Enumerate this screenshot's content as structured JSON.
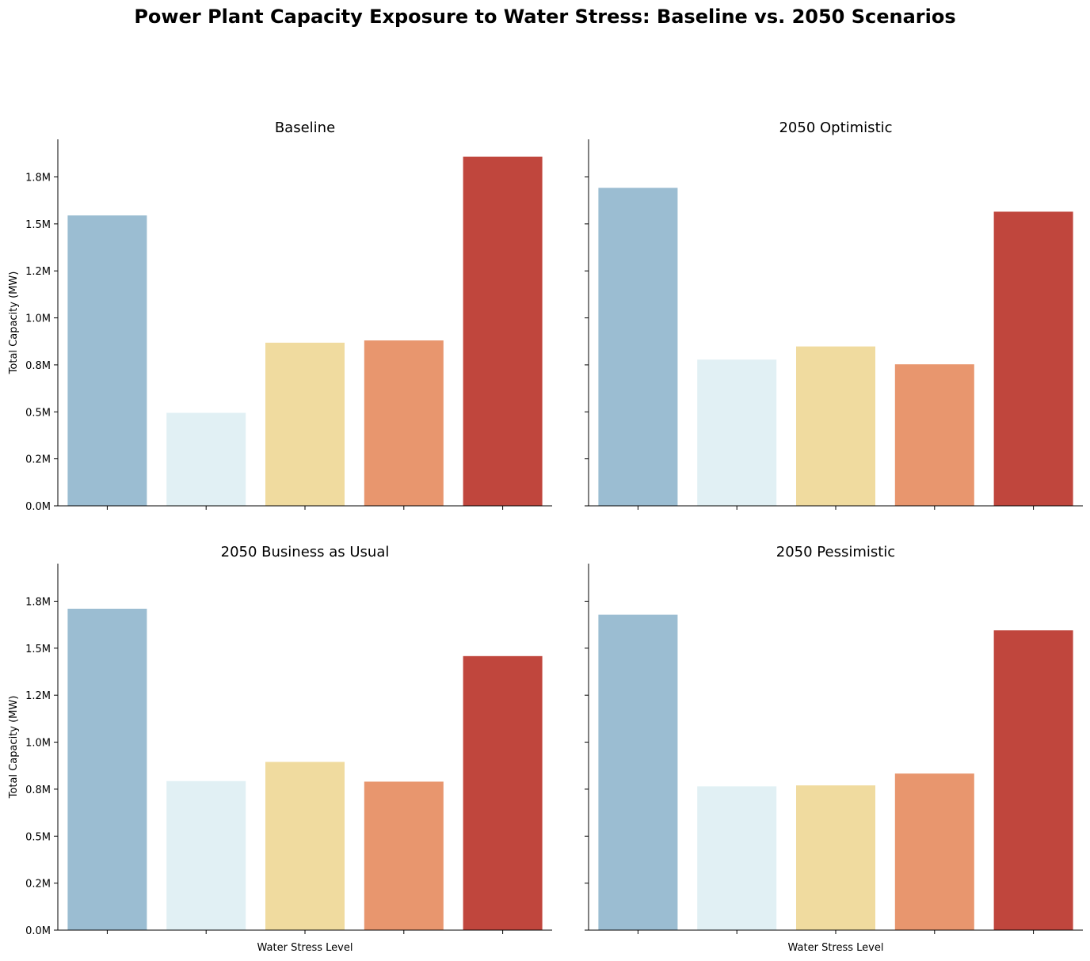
{
  "title": "Power Plant Capacity Exposure to Water Stress: Baseline vs. 2050 Scenarios",
  "chart_data": [
    {
      "type": "bar",
      "title": "Baseline",
      "xlabel": "",
      "ylabel": "Total Capacity (MW)",
      "values": [
        1545000,
        495000,
        868000,
        880000,
        1858000
      ]
    },
    {
      "type": "bar",
      "title": "2050 Optimistic",
      "xlabel": "",
      "ylabel": "",
      "values": [
        1692000,
        778000,
        848000,
        753000,
        1565000
      ]
    },
    {
      "type": "bar",
      "title": "2050 Business as Usual",
      "xlabel": "Water Stress Level",
      "ylabel": "Total Capacity (MW)",
      "values": [
        1710000,
        793000,
        895000,
        790000,
        1458000
      ]
    },
    {
      "type": "bar",
      "title": "2050 Pessimistic",
      "xlabel": "Water Stress Level",
      "ylabel": "",
      "values": [
        1678000,
        765000,
        770000,
        833000,
        1595000
      ]
    }
  ],
  "y_ticks": [
    {
      "value": 0,
      "label": "0.0M"
    },
    {
      "value": 250000,
      "label": "0.2M"
    },
    {
      "value": 500000,
      "label": "0.5M"
    },
    {
      "value": 750000,
      "label": "0.8M"
    },
    {
      "value": 1000000,
      "label": "1.0M"
    },
    {
      "value": 1250000,
      "label": "1.2M"
    },
    {
      "value": 1500000,
      "label": "1.5M"
    },
    {
      "value": 1750000,
      "label": "1.8M"
    }
  ],
  "ylim": [
    0,
    1950000
  ],
  "shared_y": true,
  "grid": false,
  "bar_colors": [
    "#9bbdd2",
    "#e1f0f4",
    "#f0db9f",
    "#e8966e",
    "#c0463d"
  ]
}
